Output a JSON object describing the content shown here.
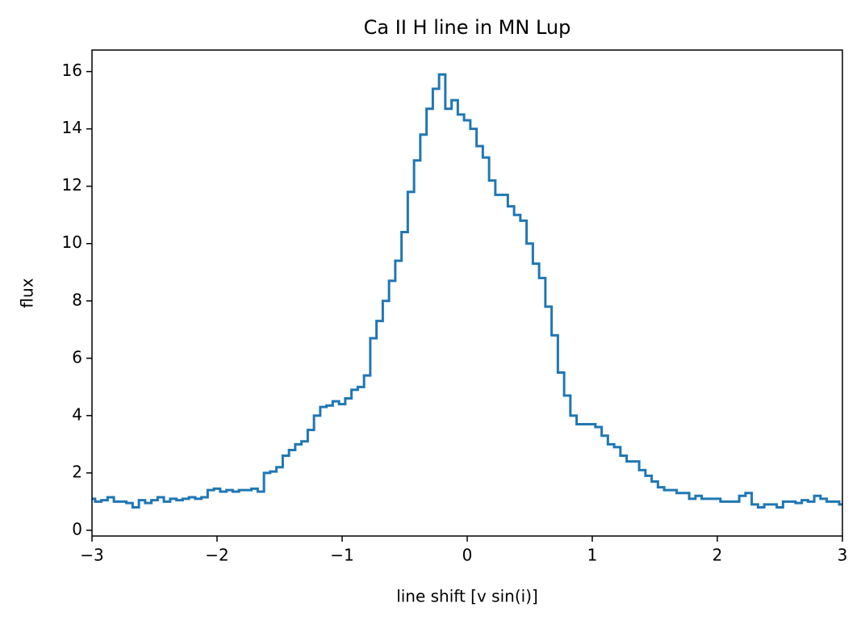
{
  "chart_data": {
    "type": "step",
    "title": "Ca II H line in MN Lup",
    "x_label": "line shift [v sin(i)]",
    "y_label": "flux",
    "x": [
      -3,
      -2.95,
      -2.9,
      -2.85,
      -2.8,
      -2.75,
      -2.7,
      -2.65,
      -2.6,
      -2.55,
      -2.5,
      -2.45,
      -2.4,
      -2.35,
      -2.3,
      -2.25,
      -2.2,
      -2.15,
      -2.1,
      -2.05,
      -2,
      -1.95,
      -1.9,
      -1.85,
      -1.8,
      -1.75,
      -1.7,
      -1.65,
      -1.6,
      -1.55,
      -1.5,
      -1.45,
      -1.4,
      -1.35,
      -1.3,
      -1.25,
      -1.2,
      -1.15,
      -1.1,
      -1.05,
      -1,
      -0.95,
      -0.9,
      -0.85,
      -0.8,
      -0.75,
      -0.7,
      -0.65,
      -0.6,
      -0.55,
      -0.5,
      -0.45,
      -0.4,
      -0.35,
      -0.3,
      -0.25,
      -0.2,
      -0.15,
      -0.1,
      -0.05,
      0,
      0.05,
      0.1,
      0.15,
      0.2,
      0.25,
      0.3,
      0.35,
      0.4,
      0.45,
      0.5,
      0.55,
      0.6,
      0.65,
      0.7,
      0.75,
      0.8,
      0.85,
      0.9,
      0.95,
      1,
      1.05,
      1.1,
      1.15,
      1.2,
      1.25,
      1.3,
      1.35,
      1.4,
      1.45,
      1.5,
      1.55,
      1.6,
      1.65,
      1.7,
      1.75,
      1.8,
      1.85,
      1.9,
      1.95,
      2,
      2.05,
      2.1,
      2.15,
      2.2,
      2.25,
      2.3,
      2.35,
      2.4,
      2.45,
      2.5,
      2.55,
      2.6,
      2.65,
      2.7,
      2.75,
      2.8,
      2.85,
      2.9,
      2.95,
      3
    ],
    "values": [
      1.1,
      1.0,
      1.05,
      1.15,
      1.0,
      1.0,
      0.95,
      0.8,
      1.05,
      0.95,
      1.05,
      1.15,
      1.0,
      1.1,
      1.05,
      1.1,
      1.15,
      1.1,
      1.15,
      1.4,
      1.45,
      1.35,
      1.4,
      1.35,
      1.4,
      1.4,
      1.45,
      1.35,
      2.0,
      2.05,
      2.2,
      2.6,
      2.8,
      3.0,
      3.1,
      3.5,
      4.0,
      4.3,
      4.35,
      4.5,
      4.4,
      4.6,
      4.9,
      5.0,
      5.4,
      6.7,
      7.3,
      8.0,
      8.7,
      9.4,
      10.4,
      11.8,
      12.9,
      13.8,
      14.7,
      15.4,
      15.9,
      14.7,
      15.0,
      14.5,
      14.3,
      14.0,
      13.4,
      13.0,
      12.2,
      11.7,
      11.7,
      11.3,
      11.0,
      10.8,
      10.0,
      9.3,
      8.8,
      7.8,
      6.8,
      5.5,
      4.7,
      4.0,
      3.7,
      3.7,
      3.7,
      3.6,
      3.3,
      3.0,
      2.9,
      2.6,
      2.4,
      2.4,
      2.1,
      1.9,
      1.7,
      1.5,
      1.4,
      1.4,
      1.3,
      1.3,
      1.1,
      1.2,
      1.1,
      1.1,
      1.1,
      1.0,
      1.0,
      1.0,
      1.2,
      1.3,
      0.9,
      0.8,
      0.9,
      0.9,
      0.8,
      1.0,
      1.0,
      0.95,
      1.05,
      1.0,
      1.2,
      1.1,
      1.0,
      1.0,
      0.9
    ],
    "color": "#1f77b4",
    "xlim": [
      -3,
      3
    ],
    "xticks": [
      {
        "value": -3,
        "label": "−3"
      },
      {
        "value": -2,
        "label": "−2"
      },
      {
        "value": -1,
        "label": "−1"
      },
      0,
      1,
      2,
      3
    ],
    "ylim": [
      -0.2,
      16.75
    ],
    "yticks": [
      0,
      2,
      4,
      6,
      8,
      10,
      12,
      14,
      16
    ]
  }
}
